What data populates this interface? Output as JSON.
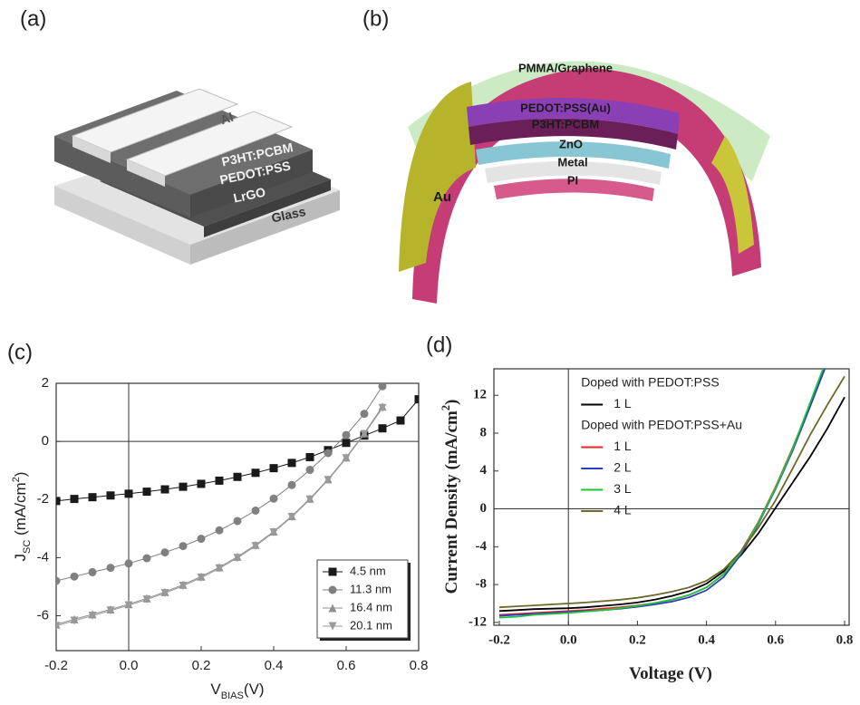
{
  "panel_labels": {
    "a": "(a)",
    "b": "(b)"
  },
  "diagram_a": {
    "labels": [
      "Al",
      "P3HT:PCBM",
      "PEDOT:PSS",
      "LrGO",
      "Glass"
    ]
  },
  "diagram_b": {
    "labels": [
      "PMMA/Graphene",
      "PEDOT:PSS(Au)",
      "P3HT:PCBM",
      "ZnO",
      "Metal",
      "PI",
      "Au"
    ]
  },
  "chart_data": [
    {
      "type": "line",
      "panel_label": "(c)",
      "xlabel": [
        "V",
        "BIAS",
        "(V)"
      ],
      "ylabel": [
        "J",
        "SC",
        " (mA/cm",
        "2",
        ")"
      ],
      "x": [
        -0.2,
        -0.15,
        -0.1,
        -0.05,
        0,
        0.05,
        0.1,
        0.15,
        0.2,
        0.25,
        0.3,
        0.35,
        0.4,
        0.45,
        0.5,
        0.55,
        0.6,
        0.65,
        0.7,
        0.75,
        0.8
      ],
      "xlim": [
        -0.2,
        0.8
      ],
      "ylim": [
        -7.2,
        2
      ],
      "xticks": [
        -0.2,
        {
          "value": 0,
          "label": "0.0"
        },
        0.2,
        0.4,
        0.6,
        0.8
      ],
      "yticks": [
        2,
        0,
        -2,
        -4,
        -6
      ],
      "legend": "lower right",
      "series": [
        {
          "name": "4.5 nm",
          "color": "#1a1a1a",
          "marker": "square",
          "values": [
            -2.05,
            -1.98,
            -1.92,
            -1.86,
            -1.8,
            -1.73,
            -1.65,
            -1.56,
            -1.46,
            -1.35,
            -1.22,
            -1.08,
            -0.92,
            -0.74,
            -0.54,
            -0.3,
            -0.05,
            0.2,
            0.45,
            0.72,
            1.45
          ]
        },
        {
          "name": "11.3 nm",
          "color": "#808080",
          "marker": "circle",
          "values": [
            -4.8,
            -4.65,
            -4.5,
            -4.35,
            -4.2,
            -4.02,
            -3.82,
            -3.6,
            -3.35,
            -3.06,
            -2.74,
            -2.38,
            -1.97,
            -1.5,
            -0.98,
            -0.4,
            0.22,
            0.95,
            1.9,
            null,
            null
          ]
        },
        {
          "name": "16.4 nm",
          "color": "#909090",
          "marker": "triangle-up",
          "values": [
            -6.3,
            -6.12,
            -5.95,
            -5.78,
            -5.6,
            -5.4,
            -5.18,
            -4.93,
            -4.65,
            -4.33,
            -3.97,
            -3.56,
            -3.1,
            -2.57,
            -1.97,
            -1.3,
            -0.55,
            0.28,
            1.2,
            null,
            null
          ]
        },
        {
          "name": "20.1 nm",
          "color": "#9a9a9a",
          "marker": "triangle-down",
          "values": [
            -6.35,
            -6.17,
            -6.0,
            -5.82,
            -5.64,
            -5.44,
            -5.22,
            -4.97,
            -4.69,
            -4.37,
            -4.01,
            -3.6,
            -3.13,
            -2.6,
            -2.0,
            -1.33,
            -0.58,
            0.25,
            1.15,
            null,
            null
          ]
        }
      ]
    },
    {
      "type": "line",
      "panel_label": "(d)",
      "xlabel": [
        "Voltage (V)"
      ],
      "ylabel": [
        "Current Density (mA/cm",
        "2",
        ")"
      ],
      "x": [
        -0.2,
        -0.15,
        -0.1,
        -0.05,
        0,
        0.05,
        0.1,
        0.15,
        0.2,
        0.25,
        0.3,
        0.35,
        0.4,
        0.45,
        0.5,
        0.55,
        0.6,
        0.65,
        0.7,
        0.75,
        0.8
      ],
      "xlim": [
        -0.2,
        0.8
      ],
      "ylim": [
        -12.3,
        14.8
      ],
      "xticks": [
        -0.2,
        {
          "value": 0,
          "label": "0.0"
        },
        0.2,
        0.4,
        0.6,
        0.8
      ],
      "yticks": [
        -12,
        -8,
        -4,
        0,
        4,
        8,
        12
      ],
      "legend": "upper left",
      "legend_headings": [
        "Doped with PEDOT:PSS",
        "Doped with PEDOT:PSS+Au"
      ],
      "series": [
        {
          "name": "1 L",
          "color": "#000000",
          "values": [
            -10.8,
            -10.7,
            -10.6,
            -10.55,
            -10.5,
            -10.4,
            -10.25,
            -10.1,
            -9.9,
            -9.6,
            -9.2,
            -8.7,
            -7.9,
            -6.6,
            -4.9,
            -2.6,
            0.1,
            2.8,
            5.5,
            8.5,
            11.8
          ]
        },
        {
          "name": "1 L",
          "color": "#e8262a",
          "values": [
            -11.2,
            -11.1,
            -11.0,
            -10.9,
            -10.8,
            -10.7,
            -10.55,
            -10.4,
            -10.2,
            -9.95,
            -9.6,
            -9.1,
            -8.3,
            -6.9,
            -4.5,
            -1.4,
            2.3,
            6.5,
            11,
            15.5,
            null
          ]
        },
        {
          "name": "2 L",
          "color": "#2c3cc0",
          "values": [
            -11.3,
            -11.2,
            -11.1,
            -11.0,
            -10.9,
            -10.8,
            -10.7,
            -10.55,
            -10.35,
            -10.1,
            -9.8,
            -9.35,
            -8.6,
            -7.2,
            -4.8,
            -1.6,
            2.1,
            6.2,
            10.8,
            15.5,
            null
          ]
        },
        {
          "name": "3 L",
          "color": "#1fc43a",
          "values": [
            -11.5,
            -11.4,
            -11.2,
            -11.1,
            -11.0,
            -10.85,
            -10.7,
            -10.5,
            -10.25,
            -9.95,
            -9.6,
            -9.1,
            -8.3,
            -6.9,
            -4.6,
            -1.5,
            2.2,
            6.4,
            11.2,
            16,
            null
          ]
        },
        {
          "name": "4 L",
          "color": "#6b6a2a",
          "values": [
            -10.4,
            -10.3,
            -10.2,
            -10.1,
            -10.0,
            -9.9,
            -9.75,
            -9.6,
            -9.4,
            -9.1,
            -8.75,
            -8.3,
            -7.6,
            -6.4,
            -4.5,
            -2.0,
            0.9,
            4.3,
            7.8,
            11.0,
            14.0
          ]
        }
      ]
    }
  ]
}
